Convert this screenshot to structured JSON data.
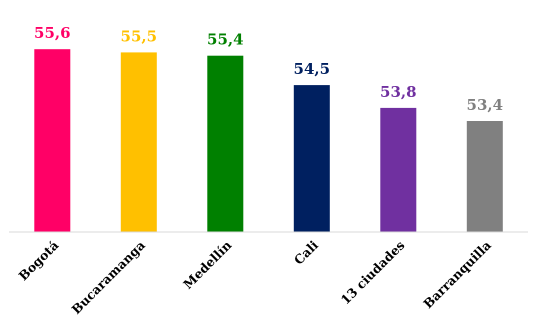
{
  "chart_data": {
    "type": "bar",
    "categories": [
      "Bogotá",
      "Bucaramanga",
      "Medellín",
      "Cali",
      "13 ciudades",
      "Barranquilla"
    ],
    "values": [
      55.6,
      55.5,
      55.4,
      54.5,
      53.8,
      53.4
    ],
    "value_labels": [
      "55,6",
      "55,5",
      "55,4",
      "54,5",
      "53,8",
      "53,4"
    ],
    "colors": [
      "#ff0066",
      "#ffc000",
      "#008000",
      "#002060",
      "#7030a0",
      "#808080"
    ],
    "title": "",
    "xlabel": "",
    "ylabel": "",
    "ylim": [
      50.0,
      56.8
    ],
    "grid": false,
    "legend": "none",
    "x_tick_rotation": -45
  }
}
